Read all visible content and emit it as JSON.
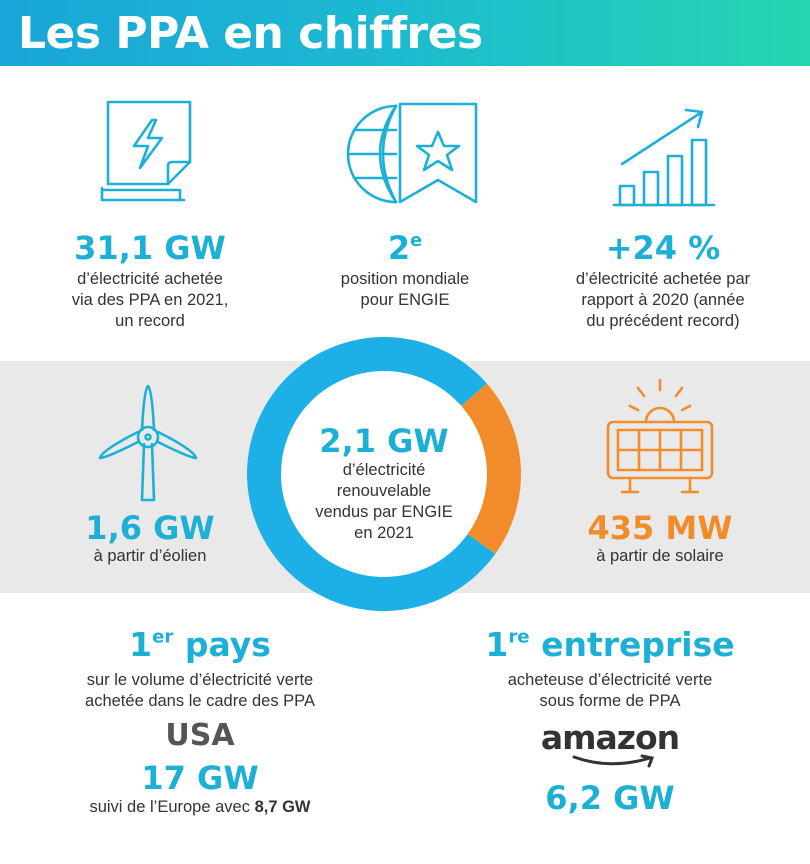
{
  "header": {
    "title": "Les PPA en chiffres"
  },
  "top_stats": [
    {
      "value": "31,1 GW",
      "desc_lines": [
        "d’électricité achetée",
        "via des PPA en 2021,",
        "un record"
      ],
      "icon": "electricity-document-icon"
    },
    {
      "value": "2",
      "value_sup": "e",
      "desc_lines": [
        "position mondiale",
        "pour ENGIE"
      ],
      "icon": "globe-ranking-badge-icon"
    },
    {
      "value": "+24 %",
      "desc_lines": [
        "d’électricité achetée par",
        "rapport à 2020 (année",
        "du précédent record)"
      ],
      "icon": "growth-bar-chart-icon"
    }
  ],
  "donut": {
    "value": "2,1 GW",
    "desc_lines": [
      "d’électricité",
      "renouvelable",
      "vendus par ENGIE",
      "en 2021"
    ],
    "wind_share": 1.6,
    "solar_share": 0.435,
    "wind_color": "#1cb0e6",
    "solar_color": "#f28c2b"
  },
  "wind": {
    "value": "1,6 GW",
    "desc": "à partir d’éolien",
    "icon": "wind-turbine-icon"
  },
  "solar": {
    "value": "435 MW",
    "desc": "à partir de solaire",
    "icon": "solar-panel-icon"
  },
  "country": {
    "rank": "1",
    "rank_sup": "er",
    "rank_word": "pays",
    "desc_lines": [
      "sur le volume d’électricité verte",
      "achetée dans le cadre des PPA"
    ],
    "name": "USA",
    "value": "17 GW",
    "note_prefix": "suivi de l’Europe avec",
    "note_value": "8,7 GW"
  },
  "company": {
    "rank": "1",
    "rank_sup": "re",
    "rank_word": "entreprise",
    "desc_lines": [
      "acheteuse d’électricité verte",
      "sous forme de PPA"
    ],
    "name": "amazon",
    "value": "6,2 GW"
  },
  "colors": {
    "cyan": "#1cb0d6",
    "orange": "#f28c2b",
    "band": "#e9e9e9"
  }
}
